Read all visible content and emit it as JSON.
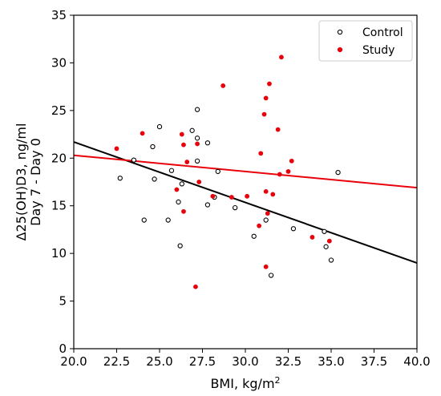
{
  "chart_data": {
    "type": "scatter",
    "xlabel": "BMI, kg/m",
    "xlabel_sup": "2",
    "ylabel_line1": "Δ25(OH)D3, ng/ml",
    "ylabel_line2": "Day 7 - Day 0",
    "xlim": [
      20.0,
      40.0
    ],
    "ylim": [
      0,
      35
    ],
    "x_ticks": [
      "20.0",
      "22.5",
      "25.0",
      "27.5",
      "30.0",
      "32.5",
      "35.0",
      "37.5",
      "40.0"
    ],
    "y_ticks": [
      "0",
      "5",
      "10",
      "15",
      "20",
      "25",
      "30",
      "35"
    ],
    "grid": false,
    "legend_position": "top-right",
    "series": [
      {
        "name": "Control",
        "marker": "open-circle",
        "color": "#000000",
        "points": [
          [
            22.7,
            17.9
          ],
          [
            23.5,
            19.8
          ],
          [
            24.1,
            13.5
          ],
          [
            24.6,
            21.2
          ],
          [
            24.7,
            17.8
          ],
          [
            25.0,
            23.3
          ],
          [
            25.5,
            13.5
          ],
          [
            25.7,
            18.7
          ],
          [
            26.1,
            15.4
          ],
          [
            26.2,
            10.8
          ],
          [
            26.3,
            17.3
          ],
          [
            26.9,
            22.9
          ],
          [
            27.2,
            25.1
          ],
          [
            27.2,
            22.1
          ],
          [
            27.2,
            19.7
          ],
          [
            27.8,
            21.6
          ],
          [
            27.8,
            15.1
          ],
          [
            28.2,
            15.9
          ],
          [
            28.4,
            18.6
          ],
          [
            29.4,
            14.8
          ],
          [
            30.5,
            11.8
          ],
          [
            31.2,
            13.5
          ],
          [
            31.5,
            7.7
          ],
          [
            32.8,
            12.6
          ],
          [
            34.6,
            12.3
          ],
          [
            34.7,
            10.7
          ],
          [
            35.0,
            9.3
          ],
          [
            35.4,
            18.5
          ]
        ]
      },
      {
        "name": "Study",
        "marker": "filled-circle",
        "color": "#e8000b",
        "points": [
          [
            22.5,
            21.0
          ],
          [
            24.0,
            22.6
          ],
          [
            26.0,
            16.7
          ],
          [
            26.3,
            22.5
          ],
          [
            26.4,
            21.4
          ],
          [
            26.4,
            14.4
          ],
          [
            26.6,
            19.6
          ],
          [
            27.1,
            6.5
          ],
          [
            27.2,
            21.5
          ],
          [
            27.3,
            17.5
          ],
          [
            28.1,
            16.0
          ],
          [
            28.7,
            27.6
          ],
          [
            29.2,
            15.9
          ],
          [
            30.1,
            16.0
          ],
          [
            30.8,
            12.9
          ],
          [
            30.9,
            20.5
          ],
          [
            31.1,
            24.6
          ],
          [
            31.2,
            26.3
          ],
          [
            31.2,
            16.5
          ],
          [
            31.2,
            8.6
          ],
          [
            31.3,
            14.2
          ],
          [
            31.4,
            27.8
          ],
          [
            31.6,
            16.2
          ],
          [
            31.9,
            23.0
          ],
          [
            32.0,
            18.3
          ],
          [
            32.1,
            30.6
          ],
          [
            32.5,
            18.6
          ],
          [
            32.7,
            19.7
          ],
          [
            33.9,
            11.7
          ],
          [
            34.9,
            11.3
          ]
        ]
      }
    ],
    "trend_lines": [
      {
        "series": "Control",
        "color": "#000000",
        "x": [
          20.0,
          40.0
        ],
        "y": [
          21.7,
          9.0
        ]
      },
      {
        "series": "Study",
        "color": "#e8000b",
        "x": [
          20.0,
          40.0
        ],
        "y": [
          20.3,
          16.9
        ]
      }
    ]
  }
}
